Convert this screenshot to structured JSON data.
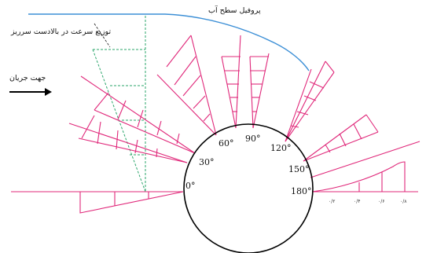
{
  "labels": {
    "water_surface_profile": "پروفیل سطح آب",
    "upstream_velocity_distribution": "توزیع سرعت در بالادست سرریز",
    "flow_direction": "جهت جریان"
  },
  "angles": [
    "0°",
    "30°",
    "60°",
    "90°",
    "120°",
    "150°",
    "180°"
  ],
  "scale_ticks": [
    "۰/۲",
    "۰/۴",
    "۰/۶",
    "۰/۸"
  ],
  "colors": {
    "profile_lines": "#e0287a",
    "upstream_distribution": "#2aa56a",
    "water_surface": "#3c8fd6",
    "weir": "#000000"
  }
}
